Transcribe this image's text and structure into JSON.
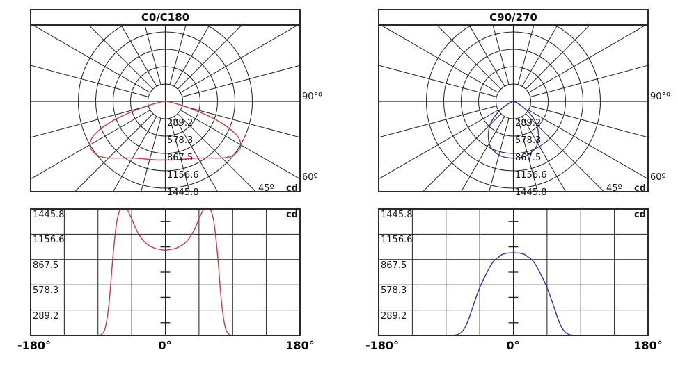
{
  "colors": {
    "grid": "#1f1f1f",
    "frame": "#2a2a2a",
    "red_curve": "#c83c3c",
    "blue_curve": "#3232a0"
  },
  "distributions": {
    "c0_c180": {
      "angles_deg": [
        -90,
        -85,
        -80,
        -75,
        -70,
        -65,
        -60,
        -55,
        -50,
        -45,
        -40,
        -35,
        -30,
        -25,
        -20,
        -15,
        -10,
        -5,
        0,
        5,
        10,
        15,
        20,
        25,
        30,
        35,
        40,
        45,
        50,
        55,
        60,
        65,
        70,
        75,
        80,
        85,
        90
      ],
      "values_cd": [
        0,
        15,
        95,
        385,
        905,
        1292,
        1447,
        1464,
        1424,
        1333,
        1232,
        1150,
        1090,
        1048,
        1020,
        1000,
        988,
        980,
        975,
        980,
        988,
        1000,
        1020,
        1048,
        1090,
        1150,
        1232,
        1333,
        1424,
        1464,
        1447,
        1292,
        905,
        385,
        95,
        15,
        0
      ]
    },
    "c90_c270": {
      "angles_deg": [
        -90,
        -85,
        -80,
        -75,
        -70,
        -65,
        -60,
        -55,
        -50,
        -45,
        -40,
        -35,
        -30,
        -25,
        -20,
        -15,
        -10,
        -5,
        0,
        5,
        10,
        15,
        20,
        25,
        30,
        35,
        40,
        45,
        50,
        55,
        60,
        65,
        70,
        75,
        80,
        85,
        90
      ],
      "values_cd": [
        0,
        0,
        2,
        10,
        32,
        85,
        180,
        305,
        430,
        545,
        640,
        725,
        805,
        862,
        895,
        925,
        938,
        943,
        945,
        943,
        938,
        925,
        895,
        862,
        805,
        725,
        640,
        545,
        430,
        305,
        180,
        85,
        32,
        10,
        2,
        0,
        0
      ]
    }
  },
  "chart_data": [
    {
      "panel": "top-left",
      "type": "polar",
      "title": "C0/C180",
      "curve_color": "#c83c3c",
      "unit": "cd",
      "scale_max_cd": 1445.8,
      "ring_step_cd": 289.15,
      "spoke_step_deg": 15,
      "ring_labels": [
        "289.2",
        "578.3",
        "867.5",
        "1156.6",
        "1445.8"
      ],
      "edge_labels": {
        "deg90": "90°º",
        "deg60": "60º",
        "deg45": "45º",
        "unit": "cd"
      },
      "distribution": "c0_c180"
    },
    {
      "panel": "top-right",
      "type": "polar",
      "title": "C90/270",
      "curve_color": "#3232a0",
      "unit": "cd",
      "scale_max_cd": 1445.8,
      "ring_step_cd": 289.15,
      "spoke_step_deg": 15,
      "ring_labels": [
        "289.2",
        "578.3",
        "867.5",
        "1156.6",
        "1445.8"
      ],
      "edge_labels": {
        "deg90": "90°º",
        "deg60": "60º",
        "deg45": "45º",
        "unit": "cd"
      },
      "distribution": "c90_c270"
    },
    {
      "panel": "bottom-left",
      "type": "line",
      "curve_color": "#c83c3c",
      "unit": "cd",
      "scale_max_cd": 1445.8,
      "x_range_deg": [
        -180,
        180
      ],
      "x_grid_step_deg": 45,
      "y_axis_labels": [
        "1445.8",
        "1156.6",
        "867.5",
        "578.3",
        "289.2"
      ],
      "x_axis_labels": [
        "-180°",
        "0°",
        "180°"
      ],
      "distribution": "c0_c180"
    },
    {
      "panel": "bottom-right",
      "type": "line",
      "curve_color": "#3232a0",
      "unit": "cd",
      "scale_max_cd": 1445.8,
      "x_range_deg": [
        -180,
        180
      ],
      "x_grid_step_deg": 45,
      "y_axis_labels": [
        "1445.8",
        "1156.6",
        "867.5",
        "578.3",
        "289.2"
      ],
      "x_axis_labels": [
        "-180°",
        "0°",
        "180°"
      ],
      "distribution": "c90_c270"
    }
  ]
}
